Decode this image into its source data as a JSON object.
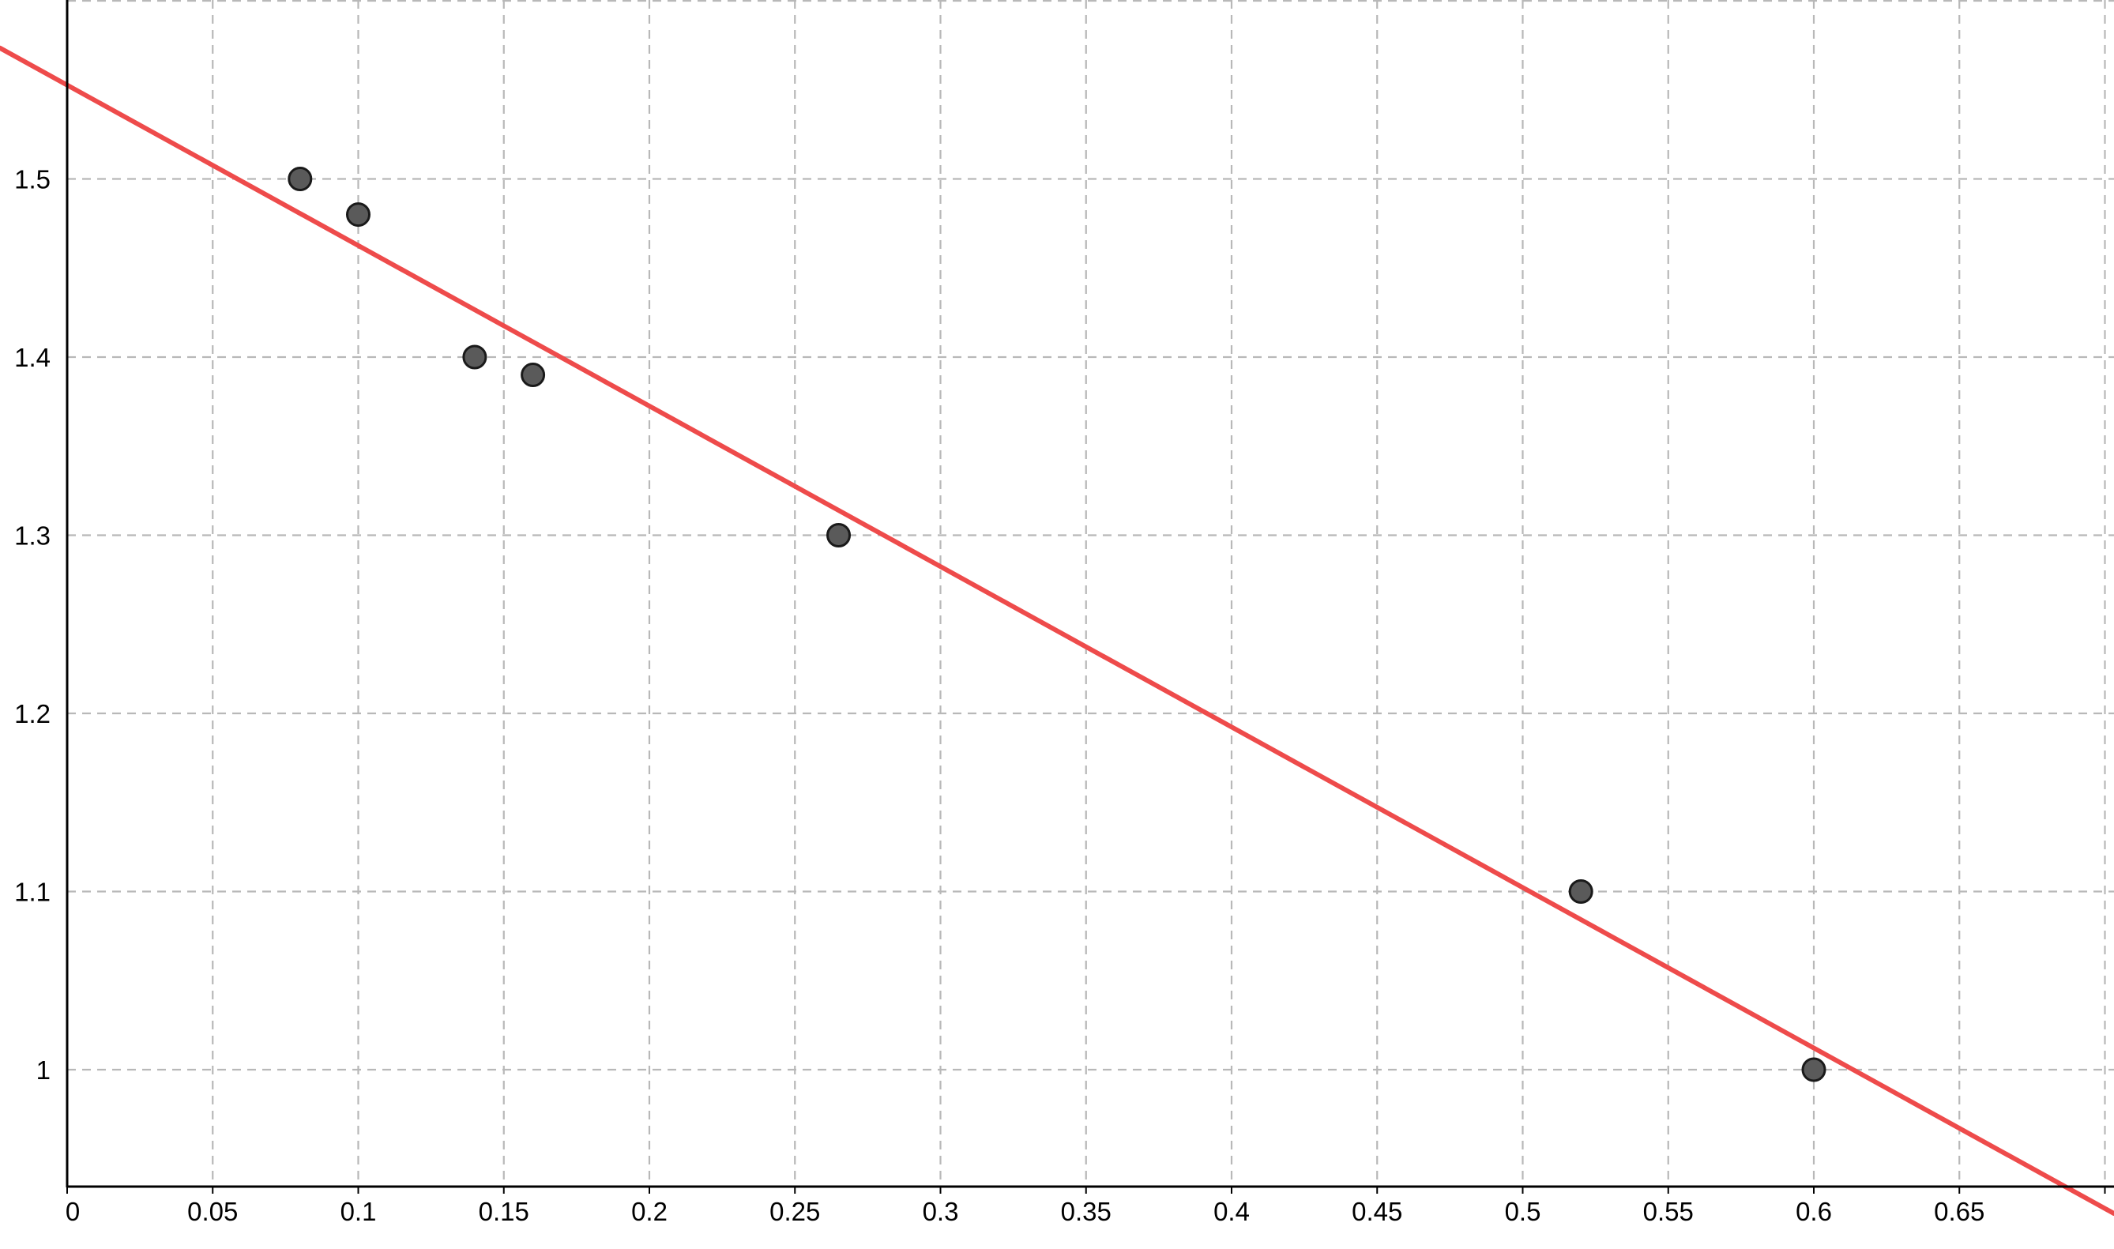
{
  "chart_data": {
    "type": "scatter",
    "title": "",
    "xlabel": "",
    "ylabel": "",
    "xlim": [
      0,
      0.7
    ],
    "ylim": [
      0.935,
      1.6
    ],
    "x_ticks": [
      0,
      0.05,
      0.1,
      0.15,
      0.2,
      0.25,
      0.3,
      0.35,
      0.4,
      0.45,
      0.5,
      0.55,
      0.6,
      0.65
    ],
    "x_tick_labels": [
      "0",
      "0.05",
      "0.1",
      "0.15",
      "0.2",
      "0.25",
      "0.3",
      "0.35",
      "0.4",
      "0.45",
      "0.5",
      "0.55",
      "0.6",
      "0.65"
    ],
    "y_ticks": [
      1,
      1.1,
      1.2,
      1.3,
      1.4,
      1.5
    ],
    "y_tick_labels": [
      "1",
      "1.1",
      "1.2",
      "1.3",
      "1.4",
      "1.5"
    ],
    "grid": true,
    "points": [
      {
        "x": 0.08,
        "y": 1.5
      },
      {
        "x": 0.1,
        "y": 1.48
      },
      {
        "x": 0.14,
        "y": 1.4
      },
      {
        "x": 0.16,
        "y": 1.39
      },
      {
        "x": 0.265,
        "y": 1.3
      },
      {
        "x": 0.52,
        "y": 1.1
      },
      {
        "x": 0.6,
        "y": 1.0
      }
    ],
    "trend_line": {
      "slope": -0.9009,
      "intercept": 1.5527
    },
    "colors": {
      "point_fill": "#5a5a5a",
      "point_stroke": "#1a1a1a",
      "line": "#ee4b4b",
      "grid": "#b8b8b8",
      "axis": "#000000"
    }
  }
}
